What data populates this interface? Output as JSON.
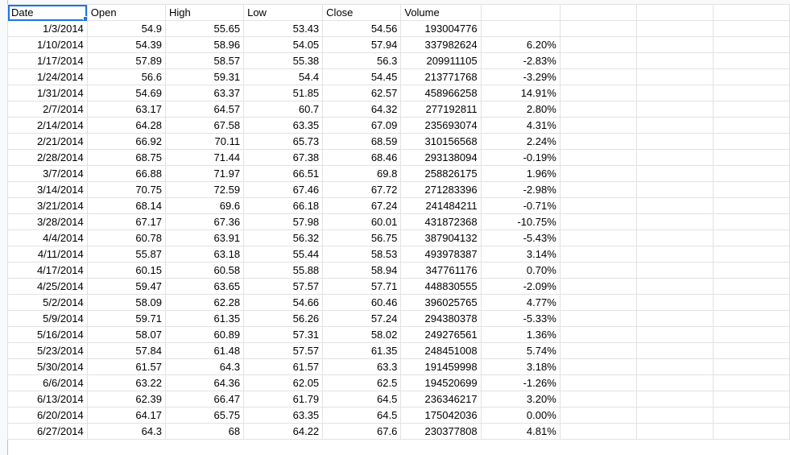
{
  "sheet": {
    "headers": [
      "Date",
      "Open",
      "High",
      "Low",
      "Close",
      "Volume",
      "",
      "",
      "",
      ""
    ],
    "selected_cell": "A1",
    "accent_color": "#1a73e8",
    "rows": [
      [
        "1/3/2014",
        "54.9",
        "55.65",
        "53.43",
        "54.56",
        "193004776",
        ""
      ],
      [
        "1/10/2014",
        "54.39",
        "58.96",
        "54.05",
        "57.94",
        "337982624",
        "6.20%"
      ],
      [
        "1/17/2014",
        "57.89",
        "58.57",
        "55.38",
        "56.3",
        "209911105",
        "-2.83%"
      ],
      [
        "1/24/2014",
        "56.6",
        "59.31",
        "54.4",
        "54.45",
        "213771768",
        "-3.29%"
      ],
      [
        "1/31/2014",
        "54.69",
        "63.37",
        "51.85",
        "62.57",
        "458966258",
        "14.91%"
      ],
      [
        "2/7/2014",
        "63.17",
        "64.57",
        "60.7",
        "64.32",
        "277192811",
        "2.80%"
      ],
      [
        "2/14/2014",
        "64.28",
        "67.58",
        "63.35",
        "67.09",
        "235693074",
        "4.31%"
      ],
      [
        "2/21/2014",
        "66.92",
        "70.11",
        "65.73",
        "68.59",
        "310156568",
        "2.24%"
      ],
      [
        "2/28/2014",
        "68.75",
        "71.44",
        "67.38",
        "68.46",
        "293138094",
        "-0.19%"
      ],
      [
        "3/7/2014",
        "66.88",
        "71.97",
        "66.51",
        "69.8",
        "258826175",
        "1.96%"
      ],
      [
        "3/14/2014",
        "70.75",
        "72.59",
        "67.46",
        "67.72",
        "271283396",
        "-2.98%"
      ],
      [
        "3/21/2014",
        "68.14",
        "69.6",
        "66.18",
        "67.24",
        "241484211",
        "-0.71%"
      ],
      [
        "3/28/2014",
        "67.17",
        "67.36",
        "57.98",
        "60.01",
        "431872368",
        "-10.75%"
      ],
      [
        "4/4/2014",
        "60.78",
        "63.91",
        "56.32",
        "56.75",
        "387904132",
        "-5.43%"
      ],
      [
        "4/11/2014",
        "55.87",
        "63.18",
        "55.44",
        "58.53",
        "493978387",
        "3.14%"
      ],
      [
        "4/17/2014",
        "60.15",
        "60.58",
        "55.88",
        "58.94",
        "347761176",
        "0.70%"
      ],
      [
        "4/25/2014",
        "59.47",
        "63.65",
        "57.57",
        "57.71",
        "448830555",
        "-2.09%"
      ],
      [
        "5/2/2014",
        "58.09",
        "62.28",
        "54.66",
        "60.46",
        "396025765",
        "4.77%"
      ],
      [
        "5/9/2014",
        "59.71",
        "61.35",
        "56.26",
        "57.24",
        "294380378",
        "-5.33%"
      ],
      [
        "5/16/2014",
        "58.07",
        "60.89",
        "57.31",
        "58.02",
        "249276561",
        "1.36%"
      ],
      [
        "5/23/2014",
        "57.84",
        "61.48",
        "57.57",
        "61.35",
        "248451008",
        "5.74%"
      ],
      [
        "5/30/2014",
        "61.57",
        "64.3",
        "61.57",
        "63.3",
        "191459998",
        "3.18%"
      ],
      [
        "6/6/2014",
        "63.22",
        "64.36",
        "62.05",
        "62.5",
        "194520699",
        "-1.26%"
      ],
      [
        "6/13/2014",
        "62.39",
        "66.47",
        "61.79",
        "64.5",
        "236346217",
        "3.20%"
      ],
      [
        "6/20/2014",
        "64.17",
        "65.75",
        "63.35",
        "64.5",
        "175042036",
        "0.00%"
      ],
      [
        "6/27/2014",
        "64.3",
        "68",
        "64.22",
        "67.6",
        "230377808",
        "4.81%"
      ]
    ]
  }
}
